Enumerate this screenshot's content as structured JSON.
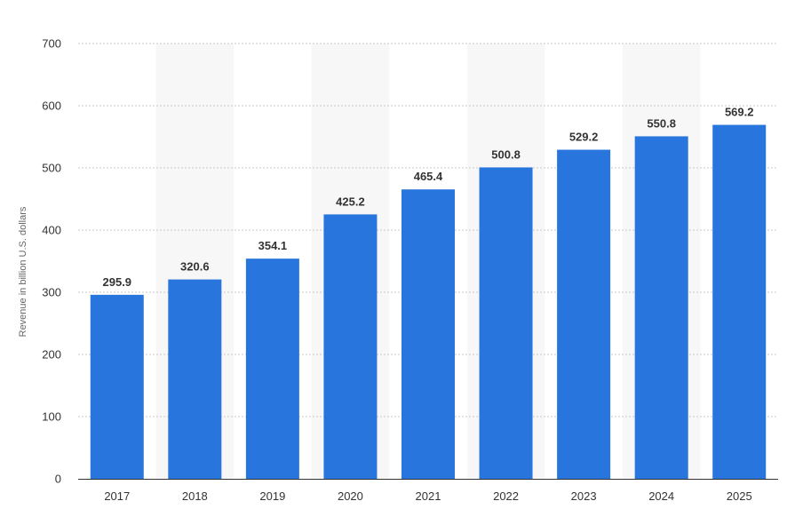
{
  "chart_data": {
    "type": "bar",
    "categories": [
      "2017",
      "2018",
      "2019",
      "2020",
      "2021",
      "2022",
      "2023",
      "2024",
      "2025"
    ],
    "values": [
      295.9,
      320.6,
      354.1,
      425.2,
      465.4,
      500.8,
      529.2,
      550.8,
      569.2
    ],
    "value_labels": [
      "295.9",
      "320.6",
      "354.1",
      "425.2",
      "465.4",
      "500.8",
      "529.2",
      "550.8",
      "569.2"
    ],
    "title": "",
    "xlabel": "",
    "ylabel": "Revenue in billion U.S. dollars",
    "ylim": [
      0,
      700
    ],
    "yticks": [
      0,
      100,
      200,
      300,
      400,
      500,
      600,
      700
    ],
    "ytick_labels": [
      "0",
      "100",
      "200",
      "300",
      "400",
      "500",
      "600",
      "700"
    ],
    "grid": true,
    "legend": "none",
    "colors": {
      "bar": "#2876dd",
      "alt_band": "#f7f7f7",
      "grid": "#c8c8c8",
      "axis": "#333333"
    }
  }
}
